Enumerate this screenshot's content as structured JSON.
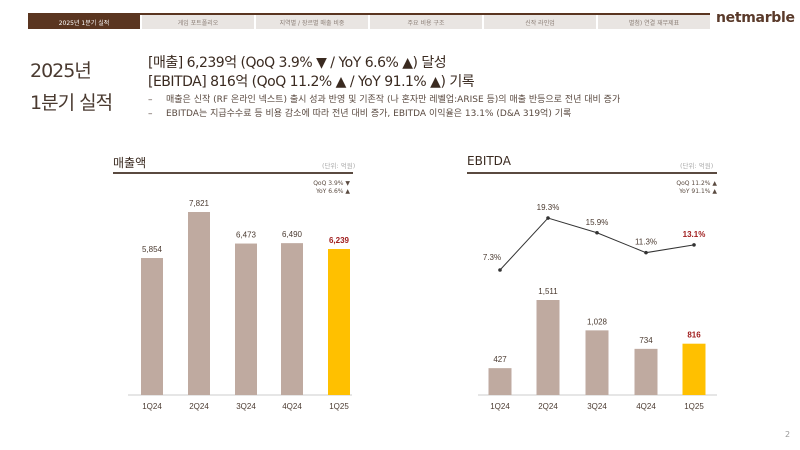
{
  "nav": {
    "tabs": [
      "2025년 1분기 실적",
      "게임 포트폴리오",
      "지역별 / 장르별 매출 비중",
      "주요 비용 구조",
      "신작 라인업",
      "별첨) 연결 재무제표"
    ],
    "active": 0
  },
  "logo": "netmarble",
  "title": {
    "line1": "2025년",
    "line2": "1분기 실적"
  },
  "headlines": [
    "[매출] 6,239억 (QoQ 3.9% ▼ / YoY 6.6% ▲) 달성",
    "[EBITDA] 816억 (QoQ 11.2% ▲ / YoY 91.1% ▲) 기록"
  ],
  "bullets": [
    "매출은 신작 (RF 온라인 넥스트) 출시 성과 반영 및 기존작 (나 혼자만 레벨업:ARISE 등)의 매출 반등으로 전년 대비 증가",
    "EBITDA는 지급수수료 등 비용 감소에 따라 전년 대비 증가, EBITDA 이익율은 13.1% (D&A 319억) 기록"
  ],
  "page_number": "2",
  "colors": {
    "bar": "#bfaaa0",
    "highlight": "#ffc000",
    "brand": "#5a3520"
  },
  "chart_data": [
    {
      "type": "bar",
      "title": "매출액",
      "unit": "(단위: 억원)",
      "notes": [
        "QoQ 3.9% ▼",
        "YoY 6.6% ▲"
      ],
      "categories": [
        "1Q24",
        "2Q24",
        "3Q24",
        "4Q24",
        "1Q25"
      ],
      "values": [
        5854,
        7821,
        6473,
        6490,
        6239
      ],
      "labels": [
        "5,854",
        "7,821",
        "6,473",
        "6,490",
        "6,239"
      ],
      "highlight_index": 4
    },
    {
      "type": "bar+line",
      "title": "EBITDA",
      "unit": "(단위: 억원)",
      "notes": [
        "QoQ 11.2% ▲",
        "YoY 91.1% ▲"
      ],
      "categories": [
        "1Q24",
        "2Q24",
        "3Q24",
        "4Q24",
        "1Q25"
      ],
      "values": [
        427,
        1511,
        1028,
        734,
        816
      ],
      "labels": [
        "427",
        "1,511",
        "1,028",
        "734",
        "816"
      ],
      "margin": [
        7.3,
        19.3,
        15.9,
        11.3,
        13.1
      ],
      "margin_labels": [
        "7.3%",
        "19.3%",
        "15.9%",
        "11.3%",
        "13.1%"
      ],
      "highlight_index": 4
    }
  ]
}
